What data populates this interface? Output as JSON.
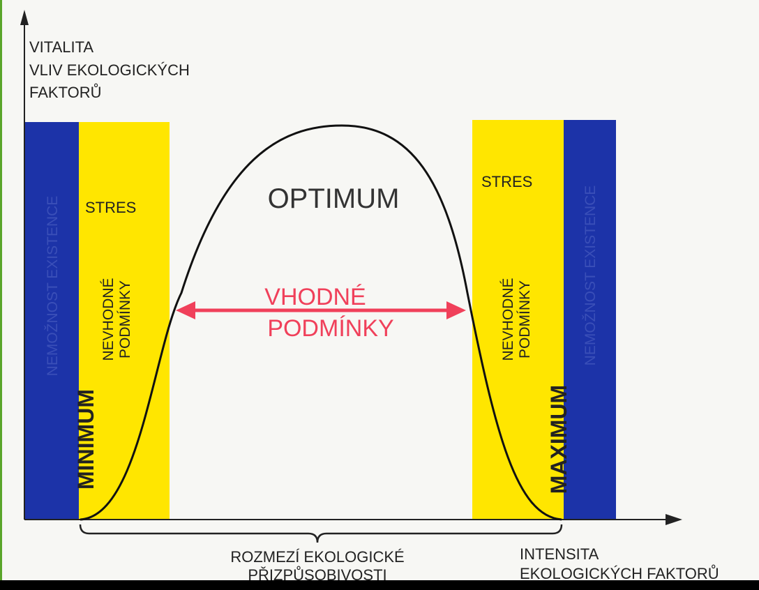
{
  "y_axis": {
    "lines": [
      "VITALITA",
      "VLIV EKOLOGICKÝCH",
      "FAKTORŮ"
    ]
  },
  "x_axis": {
    "lines": [
      "INTENSITA",
      "EKOLOGICKÝCH FAKTORŮ"
    ]
  },
  "center": {
    "title": "OPTIMUM",
    "range": [
      "VHODNÉ",
      "PODMÍNKY"
    ]
  },
  "left": {
    "blue": "NEMOŽNOST EXISTENCE",
    "stress": "STRES",
    "unsuitable": [
      "NEVHODNÉ",
      "PODMÍNKY"
    ],
    "limit": "MINIMUM"
  },
  "right": {
    "blue": "NEMOŽNOST EXISTENCE",
    "stress": "STRES",
    "unsuitable": [
      "NEVHODNÉ",
      "PODMÍNKY"
    ],
    "limit": "MAXIMUM"
  },
  "tolerance": [
    "ROZMEZÍ EKOLOGICKÉ",
    "PŘIZPŮSOBIVOSTI"
  ]
}
